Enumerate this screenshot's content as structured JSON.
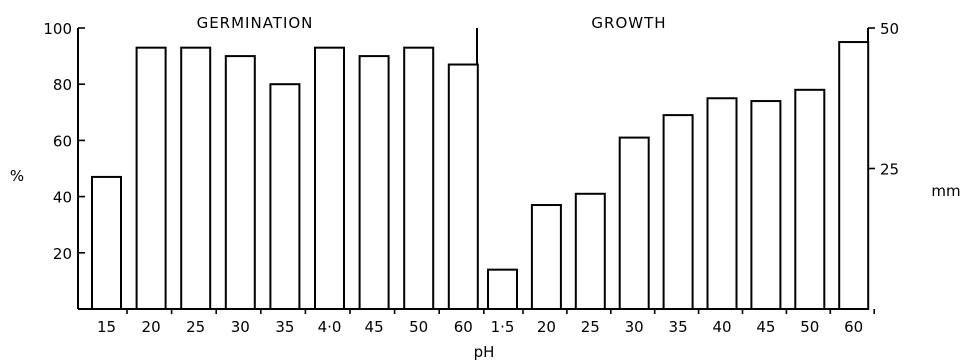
{
  "chart_data": {
    "type": "bar",
    "xlabel": "pH",
    "grid": false,
    "panels": [
      {
        "title": "GERMINATION",
        "ylabel": "%",
        "y_axis_side": "left",
        "ylim": [
          0,
          100
        ],
        "yticks": [
          20,
          40,
          60,
          80,
          100
        ],
        "categories": [
          "15",
          "20",
          "25",
          "30",
          "35",
          "4·0",
          "45",
          "50",
          "60"
        ],
        "values": [
          47,
          93,
          93,
          90,
          80,
          93,
          90,
          93,
          87
        ]
      },
      {
        "title": "GROWTH",
        "ylabel": "mm",
        "y_axis_side": "right",
        "ylim": [
          0,
          50
        ],
        "yticks": [
          25,
          50
        ],
        "categories": [
          "1·5",
          "20",
          "25",
          "30",
          "35",
          "40",
          "45",
          "50",
          "60"
        ],
        "values": [
          7,
          18.5,
          20.5,
          30.5,
          34.5,
          37.5,
          37,
          39,
          47.5
        ]
      }
    ]
  }
}
